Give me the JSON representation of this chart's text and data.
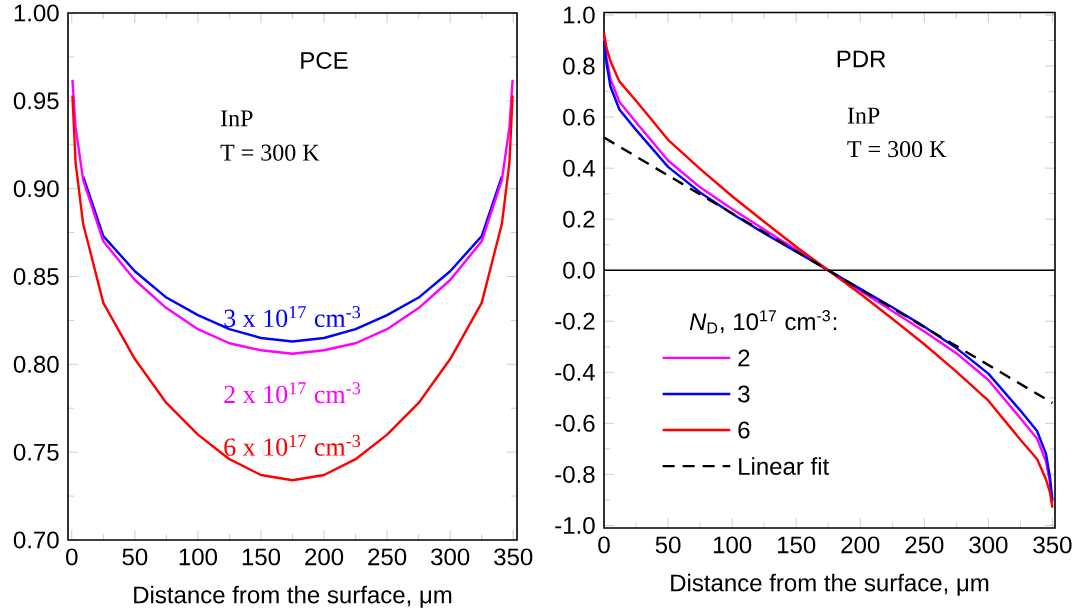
{
  "chart_data": [
    {
      "type": "line",
      "title": "PCE",
      "xlabel": "Distance from the surface, μm",
      "xlim": [
        -3,
        353
      ],
      "ylim": [
        0.7,
        1.0
      ],
      "xticks": [
        0,
        50,
        100,
        150,
        200,
        250,
        300,
        350
      ],
      "yticks": [
        {
          "value": 0.7,
          "label": "0.70"
        },
        {
          "value": 0.75,
          "label": "0.75"
        },
        {
          "value": 0.8,
          "label": "0.80"
        },
        {
          "value": 0.85,
          "label": "0.85"
        },
        {
          "value": 0.9,
          "label": "0.90"
        },
        {
          "value": 0.95,
          "label": "0.95"
        },
        {
          "value": 1.0,
          "label": "1.00"
        }
      ],
      "annotations": [
        "InP",
        "T = 300 K"
      ],
      "x": [
        0.5,
        3,
        9,
        25,
        50,
        75,
        100,
        125,
        150,
        175,
        200,
        225,
        250,
        275,
        300,
        325,
        341,
        347,
        349.5
      ],
      "series": [
        {
          "name": "3 x 10$^{17}$ cm$^{-3}$",
          "color": "#0000ff",
          "values": [
            null,
            null,
            0.907,
            0.873,
            0.853,
            0.838,
            0.828,
            0.82,
            0.815,
            0.813,
            0.815,
            0.82,
            0.828,
            0.838,
            0.853,
            0.873,
            0.907,
            null,
            null
          ]
        },
        {
          "name": "2 x 10$^{17}$ cm$^{-3}$",
          "color": "#ff00ff",
          "values": [
            0.962,
            0.935,
            0.905,
            0.87,
            0.848,
            0.832,
            0.82,
            0.812,
            0.808,
            0.806,
            0.808,
            0.812,
            0.82,
            0.832,
            0.848,
            0.87,
            0.905,
            0.935,
            0.962
          ]
        },
        {
          "name": "6 x 10$^{17}$ cm$^{-3}$",
          "color": "#ff0000",
          "values": [
            0.953,
            0.915,
            0.88,
            0.835,
            0.803,
            0.778,
            0.76,
            0.746,
            0.737,
            0.734,
            0.737,
            0.746,
            0.76,
            0.778,
            0.803,
            0.835,
            0.88,
            0.915,
            0.953
          ]
        }
      ]
    },
    {
      "type": "line",
      "title": "PDR",
      "xlabel": "Distance from the surface, μm",
      "xlim": [
        0,
        352
      ],
      "ylim": [
        -1.01,
        1.01
      ],
      "xticks": [
        0,
        50,
        100,
        150,
        200,
        250,
        300,
        350
      ],
      "yticks": [
        {
          "value": -1.0,
          "label": "-1.0"
        },
        {
          "value": -0.8,
          "label": "-0.8"
        },
        {
          "value": -0.6,
          "label": "-0.6"
        },
        {
          "value": -0.4,
          "label": "-0.4"
        },
        {
          "value": -0.2,
          "label": "-0.2"
        },
        {
          "value": 0.0,
          "label": "0.0"
        },
        {
          "value": 0.2,
          "label": "0.2"
        },
        {
          "value": 0.4,
          "label": "0.4"
        },
        {
          "value": 0.6,
          "label": "0.6"
        },
        {
          "value": 0.8,
          "label": "0.8"
        },
        {
          "value": 1.0,
          "label": "1.0"
        }
      ],
      "annotations": [
        "InP",
        "T = 300 K"
      ],
      "legend": "bottom left",
      "legend_title": "*N*$_{D}$, 10$^{17}$ cm$^{-3}$:",
      "ref_lines": [
        {
          "axis": "y",
          "value": 0
        }
      ],
      "x": [
        0,
        2,
        5,
        12,
        25,
        50,
        75,
        100,
        125,
        150,
        175,
        200,
        225,
        250,
        275,
        300,
        325,
        338,
        345,
        348,
        350
      ],
      "series": [
        {
          "name": "2",
          "color": "#ff00ff",
          "values": [
            0.91,
            0.83,
            0.75,
            0.66,
            0.58,
            0.43,
            0.325,
            0.24,
            0.16,
            0.08,
            0.0,
            -0.08,
            -0.16,
            -0.24,
            -0.325,
            -0.43,
            -0.58,
            -0.66,
            -0.75,
            -0.83,
            -0.91
          ]
        },
        {
          "name": "3",
          "color": "#0000ff",
          "values": [
            0.9,
            0.81,
            0.72,
            0.63,
            0.55,
            0.405,
            0.305,
            0.221,
            0.145,
            0.073,
            0.0,
            -0.073,
            -0.145,
            -0.221,
            -0.305,
            -0.405,
            -0.55,
            -0.63,
            -0.72,
            -0.81,
            -0.9
          ]
        },
        {
          "name": "6",
          "color": "#ff0000",
          "values": [
            0.93,
            0.87,
            0.82,
            0.74,
            0.664,
            0.511,
            0.397,
            0.29,
            0.19,
            0.092,
            0.0,
            -0.092,
            -0.19,
            -0.29,
            -0.397,
            -0.511,
            -0.664,
            -0.74,
            -0.82,
            -0.87,
            -0.93
          ]
        },
        {
          "name": "Linear fit",
          "color": "#000000",
          "line_style": "dashed",
          "x": [
            0,
            350
          ],
          "values": [
            0.52,
            -0.52
          ]
        }
      ]
    }
  ]
}
